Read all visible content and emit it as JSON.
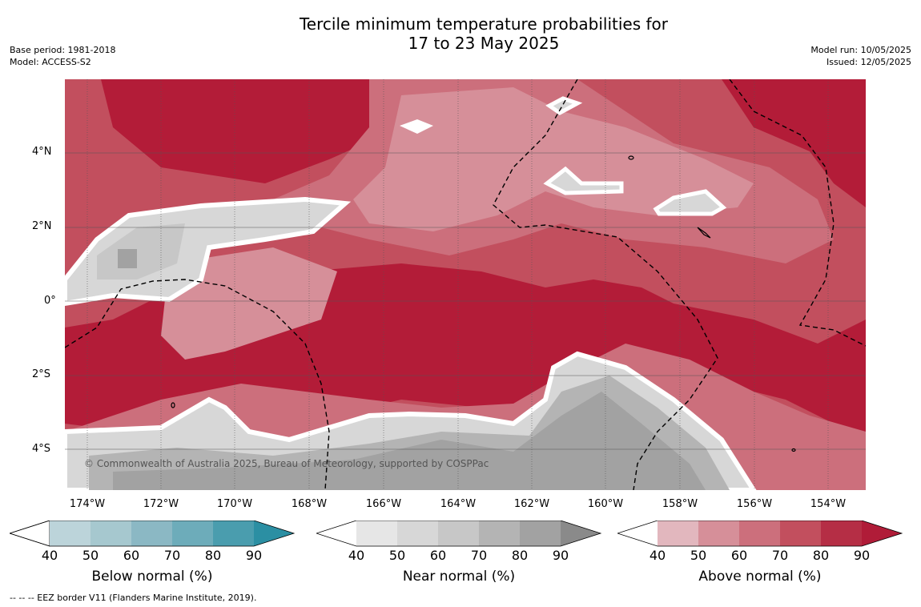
{
  "title": {
    "line1": "Tercile minimum temperature probabilities for",
    "line2": "17 to 23 May 2025"
  },
  "meta": {
    "base_period": "Base period: 1981-2018",
    "model": "Model: ACCESS-S2",
    "model_run": "Model run: 10/05/2025",
    "issued": "Issued: 12/05/2025"
  },
  "map": {
    "copyright": "© Commonwealth of Australia 2025, Bureau of Meteorology, supported by COSPPac",
    "lat_labels": [
      "4°N",
      "2°N",
      "0°",
      "2°S",
      "4°S"
    ],
    "lon_labels": [
      "174°W",
      "172°W",
      "170°W",
      "168°W",
      "166°W",
      "164°W",
      "162°W",
      "160°W",
      "158°W",
      "156°W",
      "154°W"
    ]
  },
  "legends": {
    "below": {
      "caption": "Below normal (%)",
      "ticks": [
        "40",
        "50",
        "60",
        "70",
        "80",
        "90"
      ],
      "colors": [
        "#ffffff",
        "#bcd4da",
        "#a6c8cf",
        "#8bb8c4",
        "#6dacba",
        "#4a9dae",
        "#2b8fa3"
      ]
    },
    "near": {
      "caption": "Near normal (%)",
      "ticks": [
        "40",
        "50",
        "60",
        "70",
        "80",
        "90"
      ],
      "colors": [
        "#ffffff",
        "#e6e6e6",
        "#d7d7d7",
        "#c7c7c7",
        "#b4b4b4",
        "#a2a2a2",
        "#8a8a8a"
      ]
    },
    "above": {
      "caption": "Above normal (%)",
      "ticks": [
        "40",
        "50",
        "60",
        "70",
        "80",
        "90"
      ],
      "colors": [
        "#ffffff",
        "#e2b7be",
        "#d68f99",
        "#cc6f7c",
        "#c24f5e",
        "#b52e45",
        "#b01c38"
      ]
    }
  },
  "footnote": "--  --  -- EEZ border V11 (Flanders Marine Institute, 2019)."
}
